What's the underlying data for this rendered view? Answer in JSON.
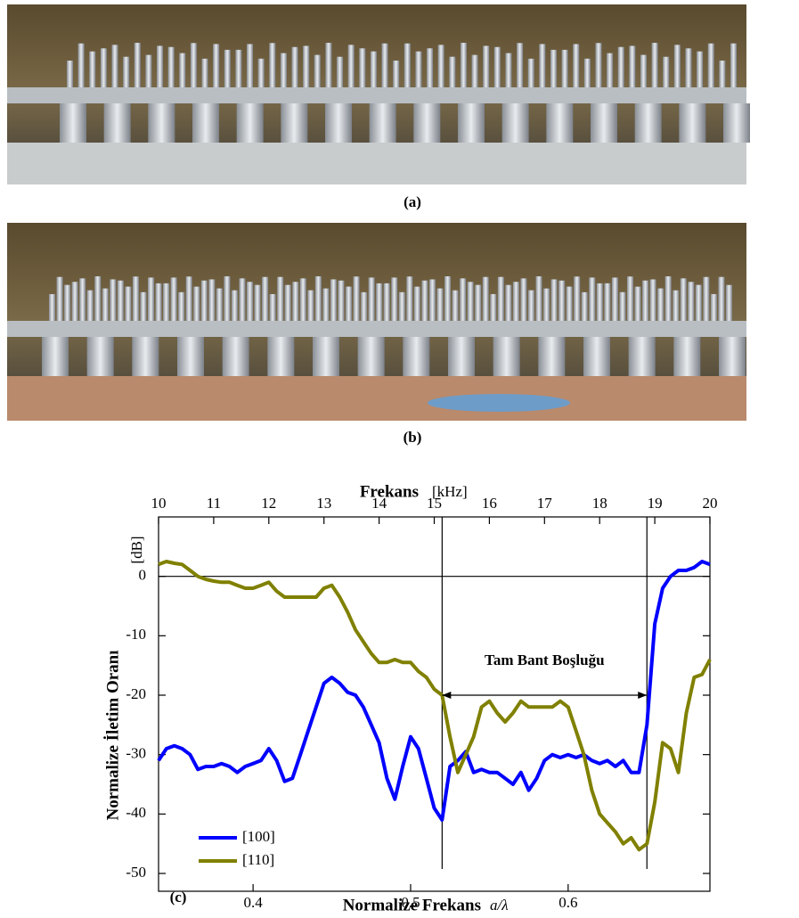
{
  "photo_captions": [
    "(a)",
    "(b)"
  ],
  "chart_data": {
    "type": "line",
    "panel_label": "(c)",
    "top_axis_title": "Frekans",
    "top_axis_unit": "[kHz]",
    "y_axis_title": "Normalize İletim Oranı",
    "y_axis_unit": "[dB]",
    "x_axis_title": "Normalize Frekans",
    "x_axis_unit": "a/λ",
    "annotation": {
      "text": "Tam Bant Boşluğu",
      "x1": 0.52,
      "x2": 0.65,
      "y": -20
    },
    "vlines": [
      0.52,
      0.65
    ],
    "hline": 0,
    "legend": "lower left",
    "xlim": [
      0.34,
      0.69
    ],
    "xticks": [
      0.4,
      0.5,
      0.6
    ],
    "x2lim": [
      10,
      20
    ],
    "x2ticks": [
      10,
      11,
      12,
      13,
      14,
      15,
      16,
      17,
      18,
      19,
      20
    ],
    "ylim": [
      -53,
      10
    ],
    "yticks": [
      0,
      -10,
      -20,
      -30,
      -40,
      -50
    ],
    "x": [
      0.34,
      0.345,
      0.35,
      0.355,
      0.36,
      0.365,
      0.37,
      0.375,
      0.38,
      0.385,
      0.39,
      0.395,
      0.4,
      0.405,
      0.41,
      0.415,
      0.42,
      0.425,
      0.43,
      0.435,
      0.44,
      0.445,
      0.45,
      0.455,
      0.46,
      0.465,
      0.47,
      0.475,
      0.48,
      0.485,
      0.49,
      0.495,
      0.5,
      0.505,
      0.51,
      0.515,
      0.52,
      0.525,
      0.53,
      0.535,
      0.54,
      0.545,
      0.55,
      0.555,
      0.56,
      0.565,
      0.57,
      0.575,
      0.58,
      0.585,
      0.59,
      0.595,
      0.6,
      0.605,
      0.61,
      0.615,
      0.62,
      0.625,
      0.63,
      0.635,
      0.64,
      0.645,
      0.65,
      0.655,
      0.66,
      0.665,
      0.67,
      0.675,
      0.68,
      0.685,
      0.69
    ],
    "series": [
      {
        "name": "[100]",
        "color": "#0000ff",
        "values": [
          -31,
          -29,
          -28.5,
          -29,
          -30,
          -32.5,
          -32,
          -32,
          -31.5,
          -32,
          -33,
          -32,
          -31.5,
          -31,
          -29,
          -31,
          -34.5,
          -34,
          -30,
          -26,
          -22,
          -18,
          -17,
          -18,
          -19.5,
          -20,
          -22,
          -25,
          -28,
          -34,
          -37.5,
          -32,
          -27,
          -29,
          -34,
          -39,
          -41,
          -32,
          -31,
          -29.5,
          -33,
          -32.5,
          -33,
          -33,
          -34,
          -35,
          -33,
          -36,
          -34,
          -31,
          -30,
          -30.5,
          -30,
          -30.5,
          -30,
          -31,
          -31.5,
          -31,
          -32,
          -31,
          -33,
          -33,
          -25,
          -8,
          -2,
          0,
          1,
          1,
          1.5,
          2.5,
          2
        ]
      },
      {
        "name": "[110]",
        "color": "#808000",
        "values": [
          2,
          2.5,
          2.2,
          2,
          1,
          0,
          -0.5,
          -0.8,
          -1,
          -1,
          -1.5,
          -2,
          -2,
          -1.5,
          -1,
          -2.5,
          -3.5,
          -3.5,
          -3.5,
          -3.5,
          -3.5,
          -2,
          -1.5,
          -3.5,
          -6,
          -9,
          -11,
          -13,
          -14.5,
          -14.5,
          -14,
          -14.5,
          -14.5,
          -16,
          -17,
          -19,
          -20,
          -27,
          -33,
          -30,
          -27,
          -22,
          -21,
          -23,
          -24.5,
          -23,
          -21,
          -22,
          -22,
          -22,
          -22,
          -21,
          -22,
          -26,
          -30,
          -36,
          -40,
          -41.5,
          -43,
          -45,
          -44,
          -46,
          -45,
          -38,
          -28,
          -29,
          -33,
          -23,
          -17,
          -16.5,
          -14
        ]
      }
    ]
  }
}
